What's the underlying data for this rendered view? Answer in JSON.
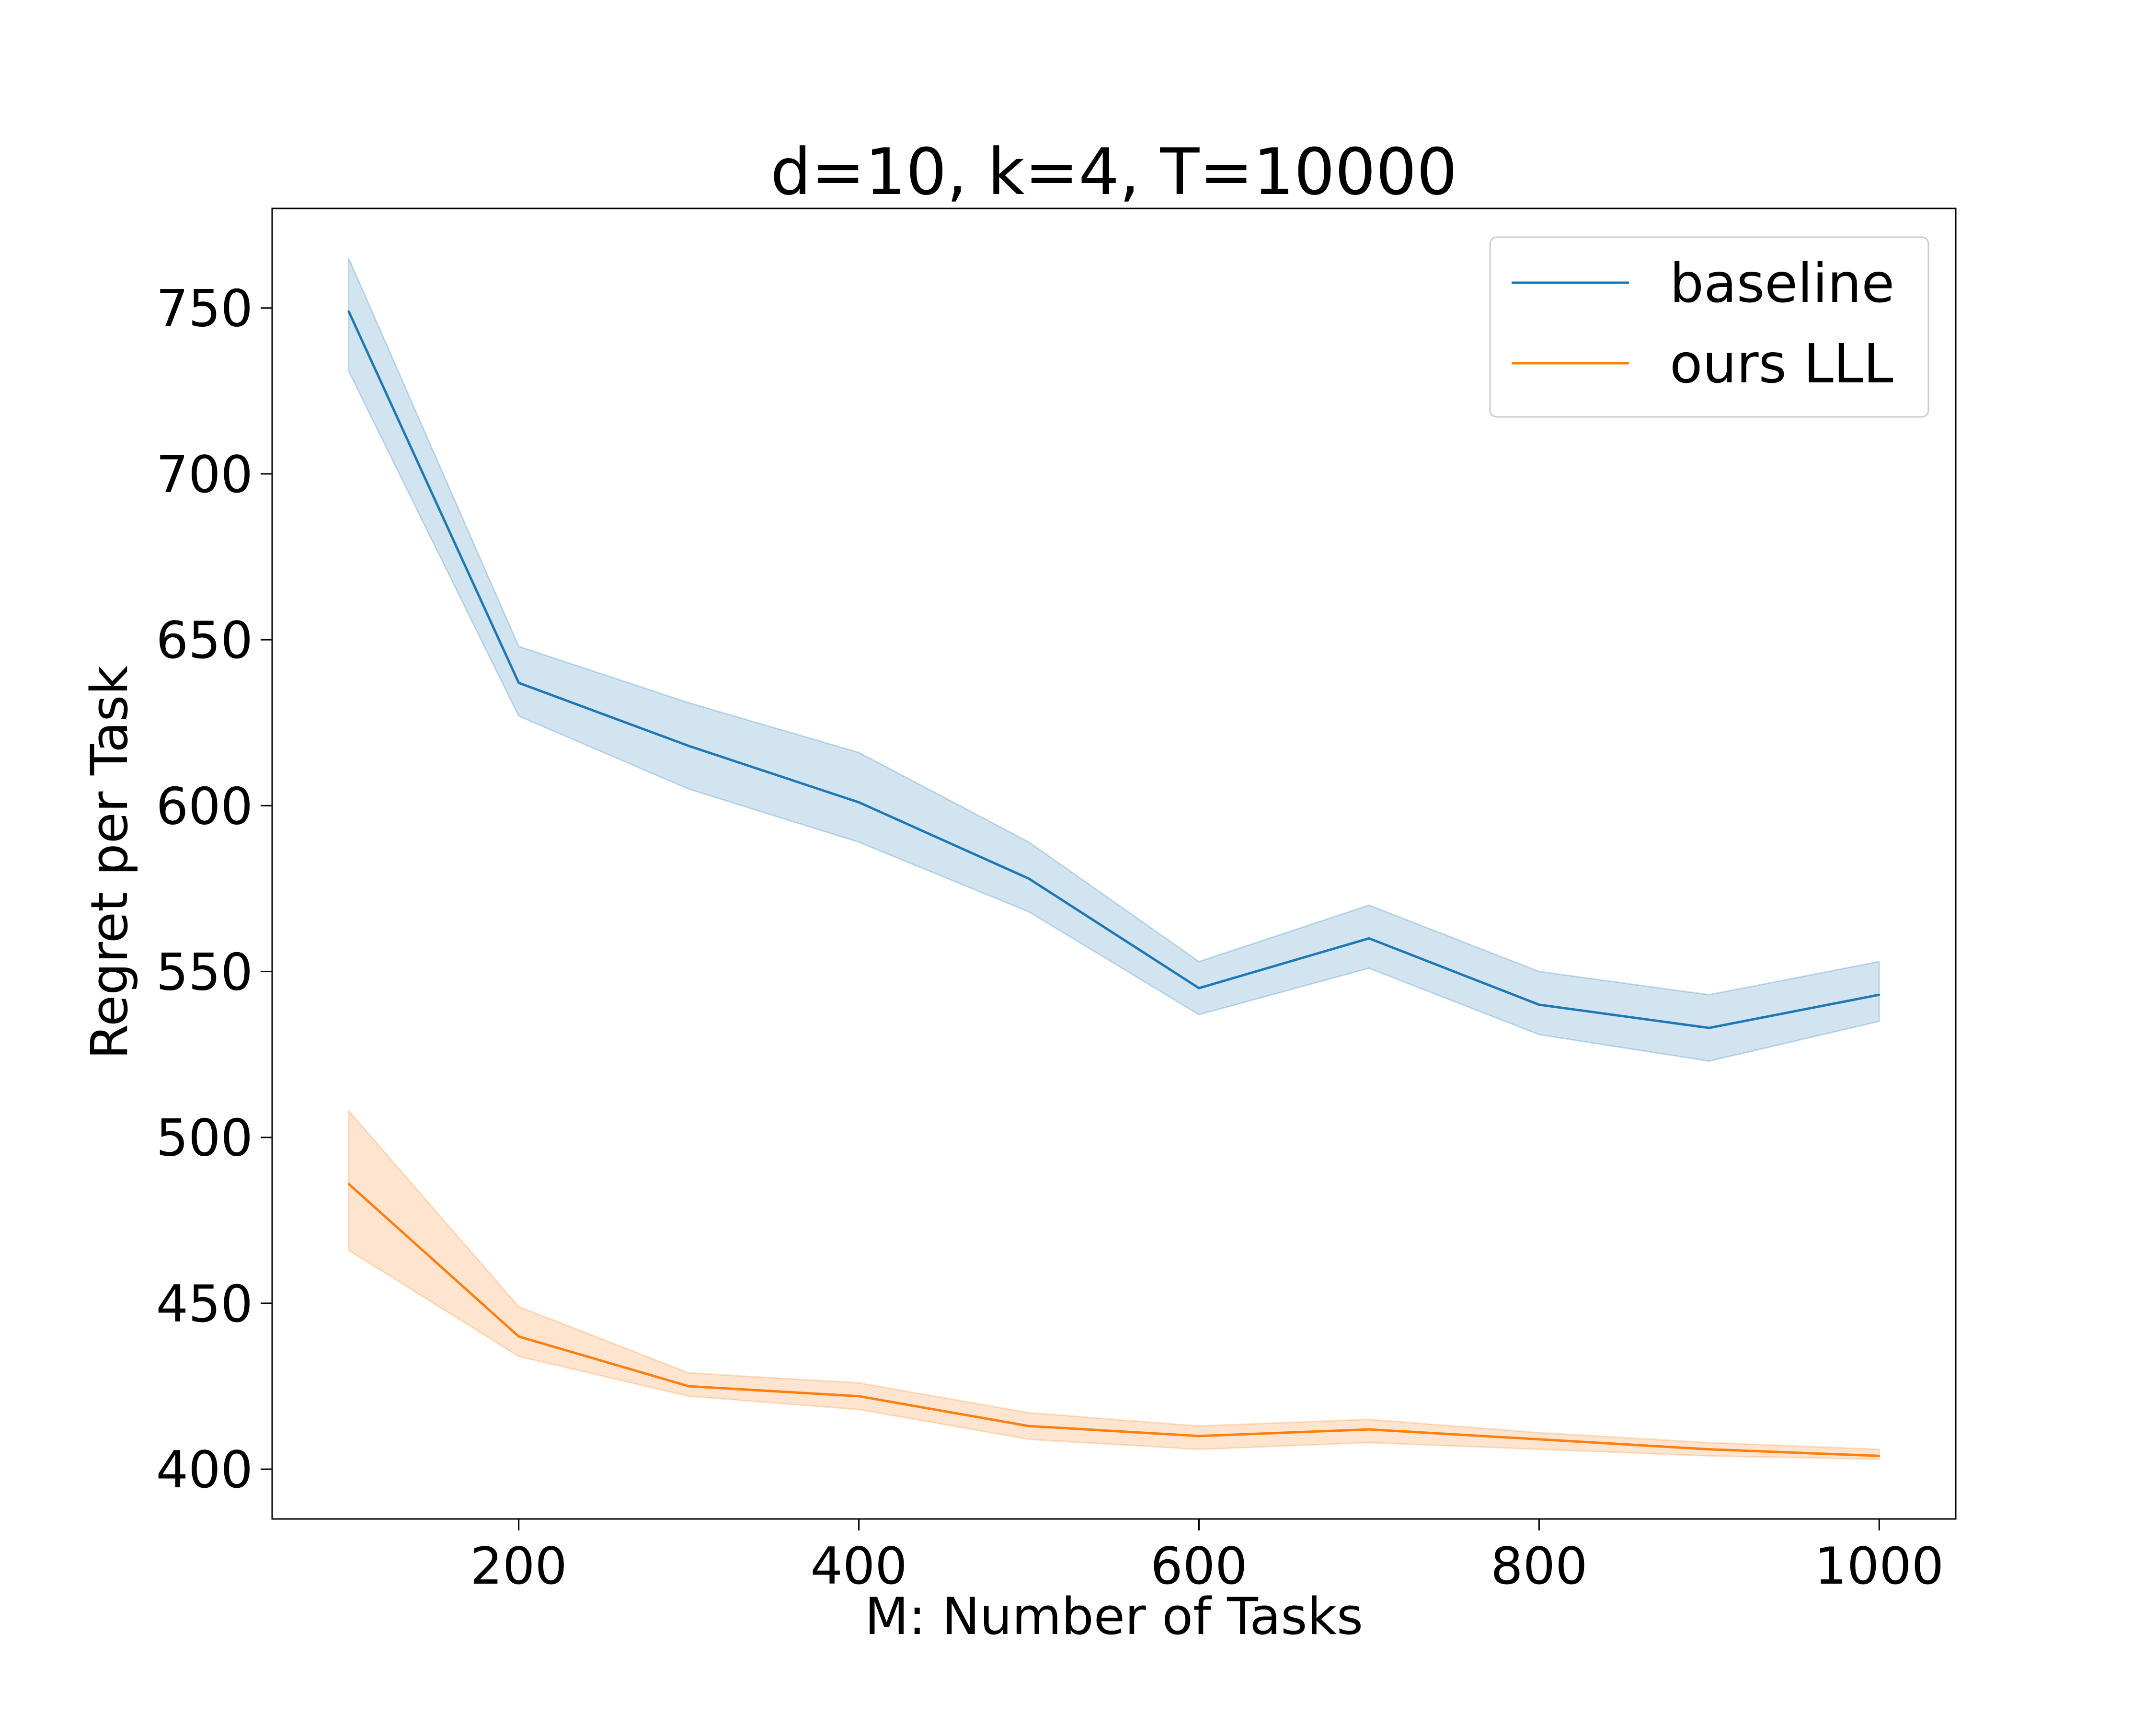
{
  "chart_data": {
    "type": "line",
    "title": "d=10, k=4, T=10000",
    "xlabel": "M: Number of Tasks",
    "ylabel": "Regret per Task",
    "xlim": [
      55,
      1045
    ],
    "ylim": [
      385,
      780
    ],
    "xticks": [
      200,
      400,
      600,
      800,
      1000
    ],
    "yticks": [
      400,
      450,
      500,
      550,
      600,
      650,
      700,
      750
    ],
    "grid": false,
    "legend_position": "top-right",
    "x": [
      100,
      200,
      300,
      400,
      500,
      600,
      700,
      800,
      900,
      1000
    ],
    "series": [
      {
        "name": "baseline",
        "color": "#1f77b4",
        "band_color": "#1f77b4",
        "values": [
          749,
          637,
          618,
          601,
          578,
          545,
          560,
          540,
          533,
          543
        ],
        "lower": [
          731,
          627,
          605,
          589,
          568,
          537,
          551,
          531,
          523,
          535
        ],
        "upper": [
          765,
          648,
          631,
          616,
          589,
          553,
          570,
          550,
          543,
          553
        ]
      },
      {
        "name": "ours LLL",
        "color": "#ff7f0e",
        "band_color": "#ff7f0e",
        "values": [
          486,
          440,
          425,
          422,
          413,
          410,
          412,
          409,
          406,
          404
        ],
        "lower": [
          466,
          434,
          422,
          418,
          409,
          406,
          408,
          406,
          404,
          403
        ],
        "upper": [
          508,
          449,
          429,
          426,
          417,
          413,
          415,
          411,
          408,
          406
        ]
      }
    ]
  }
}
